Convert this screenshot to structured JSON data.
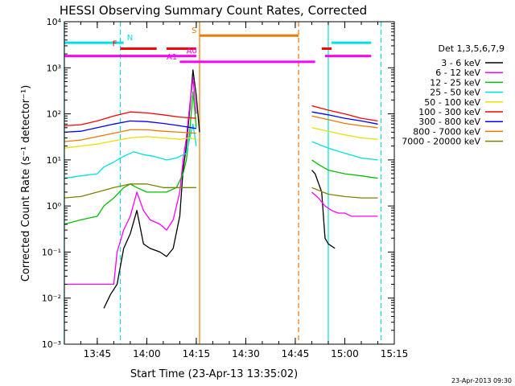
{
  "chart_data": {
    "type": "line",
    "title": "HESSI Observing Summary Count Rates, Corrected",
    "xlabel": "Start Time (23-Apr-13 13:35:02)",
    "ylabel": "Corrected Count Rate (s⁻¹ detector⁻¹)",
    "y_scale": "log",
    "ylim": [
      0.001,
      10000
    ],
    "xlim": [
      "13:35:02",
      "15:15:00"
    ],
    "x_ticks": [
      "13:45",
      "14:00",
      "14:15",
      "14:30",
      "14:45",
      "15:00",
      "15:15"
    ],
    "y_ticks": [
      "10⁻³",
      "10⁻²",
      "10⁻¹",
      "10⁰",
      "10¹",
      "10²",
      "10³",
      "10⁴"
    ],
    "legend_title": "Det 1,3,5,6,7,9",
    "legend_position": "right",
    "footer": "23-Apr-2013 09:30",
    "flags": [
      {
        "label": "N",
        "color": "#00e0e0",
        "level": 3500,
        "segments": [
          [
            "13:35",
            "13:53"
          ],
          [
            "14:56",
            "15:08"
          ]
        ]
      },
      {
        "label": "S",
        "color": "#f07800",
        "level": 5000,
        "segments": [
          [
            "14:16",
            "14:46"
          ]
        ]
      },
      {
        "label": "F",
        "color": "#ff0000",
        "level": 2600,
        "segments": [
          [
            "13:52",
            "14:03"
          ],
          [
            "14:06",
            "14:15"
          ],
          [
            "14:53",
            "14:56"
          ]
        ]
      },
      {
        "label": "A0",
        "color": "#ff00ff",
        "level": 1800,
        "segments": [
          [
            "13:35",
            "14:15"
          ],
          [
            "14:54",
            "15:08"
          ]
        ]
      },
      {
        "label": "A1",
        "color": "#ff00ff",
        "level": 1350,
        "segments": [
          [
            "14:10",
            "14:51"
          ]
        ]
      }
    ],
    "vlines": [
      {
        "time": "13:35",
        "color": "#00e0e0",
        "dash": false
      },
      {
        "time": "13:52",
        "color": "#00e0e0",
        "dash": true
      },
      {
        "time": "14:16",
        "color": "#f07800",
        "dash": false
      },
      {
        "time": "14:46",
        "color": "#f07800",
        "dash": true
      },
      {
        "time": "14:55",
        "color": "#00e0e0",
        "dash": false
      },
      {
        "time": "15:11",
        "color": "#00e0e0",
        "dash": true
      }
    ],
    "series": [
      {
        "name": "3 - 6 keV",
        "color": "#000000",
        "points": [
          [
            "13:47",
            0.006
          ],
          [
            "13:49",
            0.012
          ],
          [
            "13:51",
            0.02
          ],
          [
            "13:53",
            0.12
          ],
          [
            "13:55",
            0.25
          ],
          [
            "13:57",
            0.8
          ],
          [
            "13:59",
            0.15
          ],
          [
            "14:01",
            0.12
          ],
          [
            "14:04",
            0.1
          ],
          [
            "14:06",
            0.08
          ],
          [
            "14:08",
            0.12
          ],
          [
            "14:10",
            0.6
          ],
          [
            "14:11",
            6
          ],
          [
            "14:12",
            20
          ],
          [
            "14:13",
            120
          ],
          [
            "14:14",
            900
          ],
          [
            "14:15",
            250
          ],
          [
            "14:16",
            40
          ],
          null,
          [
            "14:50",
            6
          ],
          [
            "14:51",
            5
          ],
          [
            "14:53",
            2
          ],
          [
            "14:54",
            0.2
          ],
          [
            "14:55",
            0.15
          ],
          [
            "14:57",
            0.12
          ]
        ]
      },
      {
        "name": "6 - 12 keV",
        "color": "#ff00ff",
        "points": [
          [
            "13:35",
            0.02
          ],
          [
            "13:50",
            0.02
          ],
          [
            "13:51",
            0.1
          ],
          [
            "13:53",
            0.3
          ],
          [
            "13:55",
            0.6
          ],
          [
            "13:57",
            2
          ],
          [
            "13:59",
            0.8
          ],
          [
            "14:01",
            0.5
          ],
          [
            "14:04",
            0.4
          ],
          [
            "14:06",
            0.3
          ],
          [
            "14:08",
            0.5
          ],
          [
            "14:10",
            2
          ],
          [
            "14:11",
            10
          ],
          [
            "14:12",
            30
          ],
          [
            "14:13",
            150
          ],
          [
            "14:14",
            600
          ],
          [
            "14:15",
            100
          ],
          null,
          [
            "14:50",
            2
          ],
          [
            "14:52",
            1.5
          ],
          [
            "14:54",
            1.0
          ],
          [
            "14:56",
            0.8
          ],
          [
            "14:58",
            0.7
          ],
          [
            "15:00",
            0.7
          ],
          [
            "15:02",
            0.6
          ],
          [
            "15:05",
            0.6
          ],
          [
            "15:10",
            0.6
          ]
        ]
      },
      {
        "name": "12 - 25 keV",
        "color": "#00c000",
        "points": [
          [
            "13:35",
            0.4
          ],
          [
            "13:40",
            0.5
          ],
          [
            "13:45",
            0.6
          ],
          [
            "13:47",
            1.0
          ],
          [
            "13:50",
            1.5
          ],
          [
            "13:53",
            2.5
          ],
          [
            "13:55",
            3
          ],
          [
            "13:57",
            2.5
          ],
          [
            "14:00",
            2
          ],
          [
            "14:03",
            2
          ],
          [
            "14:06",
            2
          ],
          [
            "14:09",
            2.5
          ],
          [
            "14:11",
            5
          ],
          [
            "14:12",
            10
          ],
          [
            "14:13",
            40
          ],
          [
            "14:14",
            300
          ],
          [
            "14:15",
            50
          ],
          null,
          [
            "14:50",
            10
          ],
          [
            "14:52",
            8
          ],
          [
            "14:55",
            6
          ],
          [
            "15:00",
            5
          ],
          [
            "15:05",
            4.5
          ],
          [
            "15:10",
            4
          ]
        ]
      },
      {
        "name": "25 - 50 keV",
        "color": "#00e0e0",
        "points": [
          [
            "13:35",
            4
          ],
          [
            "13:40",
            4.5
          ],
          [
            "13:45",
            5
          ],
          [
            "13:47",
            7
          ],
          [
            "13:50",
            9
          ],
          [
            "13:53",
            12
          ],
          [
            "13:56",
            15
          ],
          [
            "13:59",
            13
          ],
          [
            "14:02",
            12
          ],
          [
            "14:06",
            10
          ],
          [
            "14:09",
            11
          ],
          [
            "14:12",
            14
          ],
          [
            "14:14",
            60
          ],
          [
            "14:15",
            20
          ],
          null,
          [
            "14:50",
            25
          ],
          [
            "14:55",
            18
          ],
          [
            "15:00",
            14
          ],
          [
            "15:05",
            11
          ],
          [
            "15:10",
            10
          ]
        ]
      },
      {
        "name": "50 - 100 keV",
        "color": "#e8e000",
        "points": [
          [
            "13:35",
            18
          ],
          [
            "13:40",
            20
          ],
          [
            "13:45",
            22
          ],
          [
            "13:50",
            26
          ],
          [
            "13:55",
            30
          ],
          [
            "14:00",
            32
          ],
          [
            "14:05",
            30
          ],
          [
            "14:10",
            28
          ],
          [
            "14:13",
            30
          ],
          [
            "14:15",
            28
          ],
          null,
          [
            "14:50",
            50
          ],
          [
            "14:55",
            42
          ],
          [
            "15:00",
            35
          ],
          [
            "15:05",
            30
          ],
          [
            "15:10",
            28
          ]
        ]
      },
      {
        "name": "100 - 300 keV",
        "color": "#ff0000",
        "points": [
          [
            "13:35",
            55
          ],
          [
            "13:40",
            58
          ],
          [
            "13:45",
            70
          ],
          [
            "13:50",
            90
          ],
          [
            "13:55",
            110
          ],
          [
            "14:00",
            105
          ],
          [
            "14:05",
            95
          ],
          [
            "14:10",
            85
          ],
          [
            "14:15",
            80
          ],
          null,
          [
            "14:50",
            150
          ],
          [
            "14:55",
            120
          ],
          [
            "15:00",
            100
          ],
          [
            "15:05",
            80
          ],
          [
            "15:10",
            70
          ]
        ]
      },
      {
        "name": "300 - 800 keV",
        "color": "#0000ff",
        "points": [
          [
            "13:35",
            40
          ],
          [
            "13:40",
            42
          ],
          [
            "13:45",
            50
          ],
          [
            "13:50",
            60
          ],
          [
            "13:55",
            70
          ],
          [
            "14:00",
            68
          ],
          [
            "14:05",
            62
          ],
          [
            "14:10",
            55
          ],
          [
            "14:15",
            48
          ],
          null,
          [
            "14:50",
            110
          ],
          [
            "14:55",
            95
          ],
          [
            "15:00",
            80
          ],
          [
            "15:05",
            70
          ],
          [
            "15:10",
            60
          ]
        ]
      },
      {
        "name": "800 - 7000 keV",
        "color": "#f07800",
        "points": [
          [
            "13:35",
            25
          ],
          [
            "13:40",
            27
          ],
          [
            "13:45",
            32
          ],
          [
            "13:50",
            38
          ],
          [
            "13:55",
            45
          ],
          [
            "14:00",
            45
          ],
          [
            "14:05",
            42
          ],
          [
            "14:10",
            40
          ],
          [
            "14:15",
            38
          ],
          null,
          [
            "14:50",
            90
          ],
          [
            "14:55",
            75
          ],
          [
            "15:00",
            62
          ],
          [
            "15:05",
            55
          ],
          [
            "15:10",
            50
          ]
        ]
      },
      {
        "name": "7000 - 20000 keV",
        "color": "#808000",
        "points": [
          [
            "13:35",
            1.5
          ],
          [
            "13:40",
            1.6
          ],
          [
            "13:45",
            2.0
          ],
          [
            "13:50",
            2.5
          ],
          [
            "13:55",
            3.0
          ],
          [
            "14:00",
            3.0
          ],
          [
            "14:05",
            2.5
          ],
          [
            "14:10",
            2.5
          ],
          [
            "14:15",
            2.5
          ],
          null,
          [
            "14:50",
            2.5
          ],
          [
            "14:55",
            1.8
          ],
          [
            "15:00",
            1.6
          ],
          [
            "15:05",
            1.5
          ],
          [
            "15:10",
            1.5
          ]
        ]
      }
    ]
  }
}
